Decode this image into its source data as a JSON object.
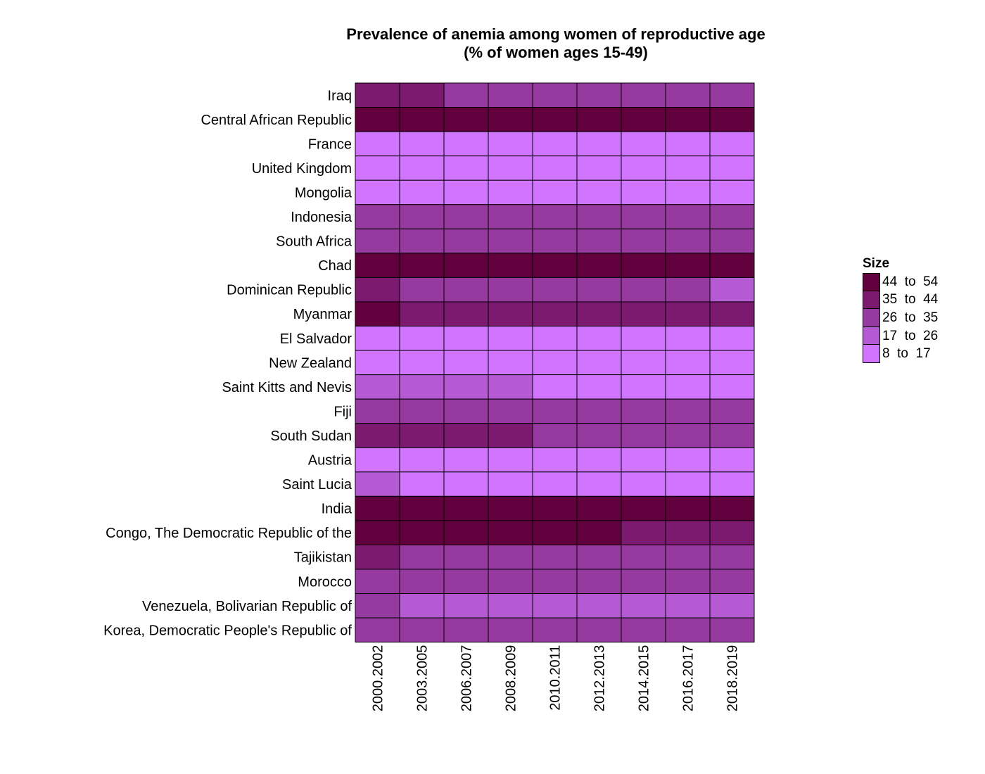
{
  "chart_data": {
    "type": "heatmap",
    "title": [
      "Prevalence of anemia among women of reproductive age",
      "(% of women ages 15-49)"
    ],
    "xlabel": "",
    "ylabel": "",
    "x": [
      "2000.2002",
      "2003.2005",
      "2006.2007",
      "2008.2009",
      "2010.2011",
      "2012.2013",
      "2014.2015",
      "2016.2017",
      "2018.2019"
    ],
    "y": [
      "Iraq",
      "Central African Republic",
      "France",
      "United Kingdom",
      "Mongolia",
      "Indonesia",
      "South Africa",
      "Chad",
      "Dominican Republic",
      "Myanmar",
      "El Salvador",
      "New Zealand",
      "Saint Kitts and Nevis",
      "Fiji",
      "South Sudan",
      "Austria",
      "Saint Lucia",
      "India",
      "Congo, The Democratic Republic of the",
      "Tajikistan",
      "Morocco",
      "Venezuela, Bolivarian Republic of",
      "Korea, Democratic People's Republic of"
    ],
    "bins": [
      {
        "label": "44  to  54",
        "min": 44,
        "max": 54,
        "color": "#62003e"
      },
      {
        "label": "35  to  44",
        "min": 35,
        "max": 44,
        "color": "#7b1a6e"
      },
      {
        "label": "26  to  35",
        "min": 26,
        "max": 35,
        "color": "#973a9f"
      },
      {
        "label": "17  to  26",
        "min": 17,
        "max": 26,
        "color": "#b65ad3"
      },
      {
        "label": "8  to  17",
        "min": 8,
        "max": 17,
        "color": "#d175fe"
      }
    ],
    "legend_title": "Size",
    "legend_position": "right",
    "grid": false,
    "values": [
      [
        36,
        36,
        30,
        30,
        30,
        30,
        30,
        30,
        30
      ],
      [
        48,
        48,
        48,
        48,
        48,
        48,
        48,
        48,
        48
      ],
      [
        12,
        12,
        12,
        12,
        12,
        12,
        12,
        12,
        12
      ],
      [
        12,
        12,
        12,
        12,
        12,
        12,
        12,
        12,
        12
      ],
      [
        14,
        14,
        14,
        14,
        14,
        14,
        14,
        14,
        14
      ],
      [
        30,
        30,
        30,
        30,
        30,
        30,
        30,
        30,
        30
      ],
      [
        30,
        30,
        30,
        30,
        30,
        30,
        30,
        30,
        30
      ],
      [
        46,
        46,
        46,
        46,
        46,
        46,
        46,
        46,
        46
      ],
      [
        36,
        32,
        32,
        32,
        32,
        32,
        32,
        30,
        24
      ],
      [
        46,
        40,
        40,
        40,
        40,
        40,
        40,
        38,
        38
      ],
      [
        14,
        14,
        14,
        14,
        14,
        14,
        14,
        14,
        14
      ],
      [
        12,
        12,
        12,
        12,
        12,
        12,
        12,
        12,
        12
      ],
      [
        20,
        20,
        20,
        20,
        16,
        16,
        16,
        16,
        16
      ],
      [
        30,
        30,
        30,
        30,
        30,
        30,
        30,
        30,
        30
      ],
      [
        38,
        38,
        38,
        36,
        34,
        34,
        32,
        32,
        32
      ],
      [
        14,
        14,
        14,
        14,
        14,
        14,
        14,
        14,
        14
      ],
      [
        20,
        16,
        16,
        16,
        16,
        16,
        16,
        16,
        16
      ],
      [
        50,
        50,
        50,
        50,
        50,
        50,
        50,
        50,
        50
      ],
      [
        46,
        46,
        46,
        46,
        46,
        46,
        42,
        40,
        40
      ],
      [
        38,
        32,
        32,
        32,
        32,
        32,
        32,
        30,
        30
      ],
      [
        30,
        30,
        30,
        30,
        30,
        30,
        30,
        30,
        30
      ],
      [
        28,
        24,
        24,
        24,
        24,
        24,
        24,
        24,
        24
      ],
      [
        30,
        30,
        30,
        30,
        30,
        30,
        30,
        30,
        30
      ]
    ]
  }
}
